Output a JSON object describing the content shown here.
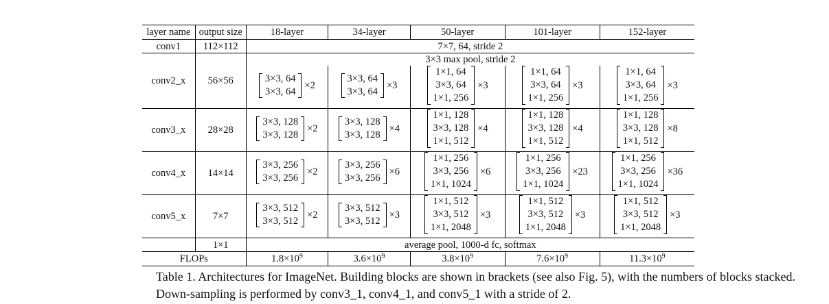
{
  "table": {
    "headers": [
      "layer name",
      "output size",
      "18-layer",
      "34-layer",
      "50-layer",
      "101-layer",
      "152-layer"
    ],
    "conv1": {
      "name": "conv1",
      "output": "112×112",
      "spec": "7×7, 64, stride 2"
    },
    "pool": {
      "spec": "3×3 max pool, stride 2"
    },
    "stages": [
      {
        "name": "conv2_x",
        "output": "56×56",
        "cells": [
          {
            "rows": [
              "3×3, 64",
              "3×3, 64"
            ],
            "mult": "×2"
          },
          {
            "rows": [
              "3×3, 64",
              "3×3, 64"
            ],
            "mult": "×3"
          },
          {
            "rows": [
              "1×1, 64",
              "3×3, 64",
              "1×1, 256"
            ],
            "mult": "×3"
          },
          {
            "rows": [
              "1×1, 64",
              "3×3, 64",
              "1×1, 256"
            ],
            "mult": "×3"
          },
          {
            "rows": [
              "1×1, 64",
              "3×3, 64",
              "1×1, 256"
            ],
            "mult": "×3"
          }
        ]
      },
      {
        "name": "conv3_x",
        "output": "28×28",
        "cells": [
          {
            "rows": [
              "3×3, 128",
              "3×3, 128"
            ],
            "mult": "×2"
          },
          {
            "rows": [
              "3×3, 128",
              "3×3, 128"
            ],
            "mult": "×4"
          },
          {
            "rows": [
              "1×1, 128",
              "3×3, 128",
              "1×1, 512"
            ],
            "mult": "×4"
          },
          {
            "rows": [
              "1×1, 128",
              "3×3, 128",
              "1×1, 512"
            ],
            "mult": "×4"
          },
          {
            "rows": [
              "1×1, 128",
              "3×3, 128",
              "1×1, 512"
            ],
            "mult": "×8"
          }
        ]
      },
      {
        "name": "conv4_x",
        "output": "14×14",
        "cells": [
          {
            "rows": [
              "3×3, 256",
              "3×3, 256"
            ],
            "mult": "×2"
          },
          {
            "rows": [
              "3×3, 256",
              "3×3, 256"
            ],
            "mult": "×6"
          },
          {
            "rows": [
              "1×1, 256",
              "3×3, 256",
              "1×1, 1024"
            ],
            "mult": "×6"
          },
          {
            "rows": [
              "1×1, 256",
              "3×3, 256",
              "1×1, 1024"
            ],
            "mult": "×23"
          },
          {
            "rows": [
              "1×1, 256",
              "3×3, 256",
              "1×1, 1024"
            ],
            "mult": "×36"
          }
        ]
      },
      {
        "name": "conv5_x",
        "output": "7×7",
        "cells": [
          {
            "rows": [
              "3×3, 512",
              "3×3, 512"
            ],
            "mult": "×2"
          },
          {
            "rows": [
              "3×3, 512",
              "3×3, 512"
            ],
            "mult": "×3"
          },
          {
            "rows": [
              "1×1, 512",
              "3×3, 512",
              "1×1, 2048"
            ],
            "mult": "×3"
          },
          {
            "rows": [
              "1×1, 512",
              "3×3, 512",
              "1×1, 2048"
            ],
            "mult": "×3"
          },
          {
            "rows": [
              "1×1, 512",
              "3×3, 512",
              "1×1, 2048"
            ],
            "mult": "×3"
          }
        ]
      }
    ],
    "final": {
      "output": "1×1",
      "spec": "average pool, 1000-d fc, softmax"
    },
    "flops": {
      "label": "FLOPs",
      "values": [
        {
          "mantissa": "1.8×10",
          "exp": "9"
        },
        {
          "mantissa": "3.6×10",
          "exp": "9"
        },
        {
          "mantissa": "3.8×10",
          "exp": "9"
        },
        {
          "mantissa": "7.6×10",
          "exp": "9"
        },
        {
          "mantissa": "11.3×10",
          "exp": "9"
        }
      ]
    }
  },
  "caption": {
    "label": "Table 1.",
    "text": "Architectures for ImageNet. Building blocks are shown in brackets (see also Fig. 5), with the numbers of blocks stacked. Down-sampling is performed by conv3_1, conv4_1, and conv5_1 with a stride of 2."
  }
}
